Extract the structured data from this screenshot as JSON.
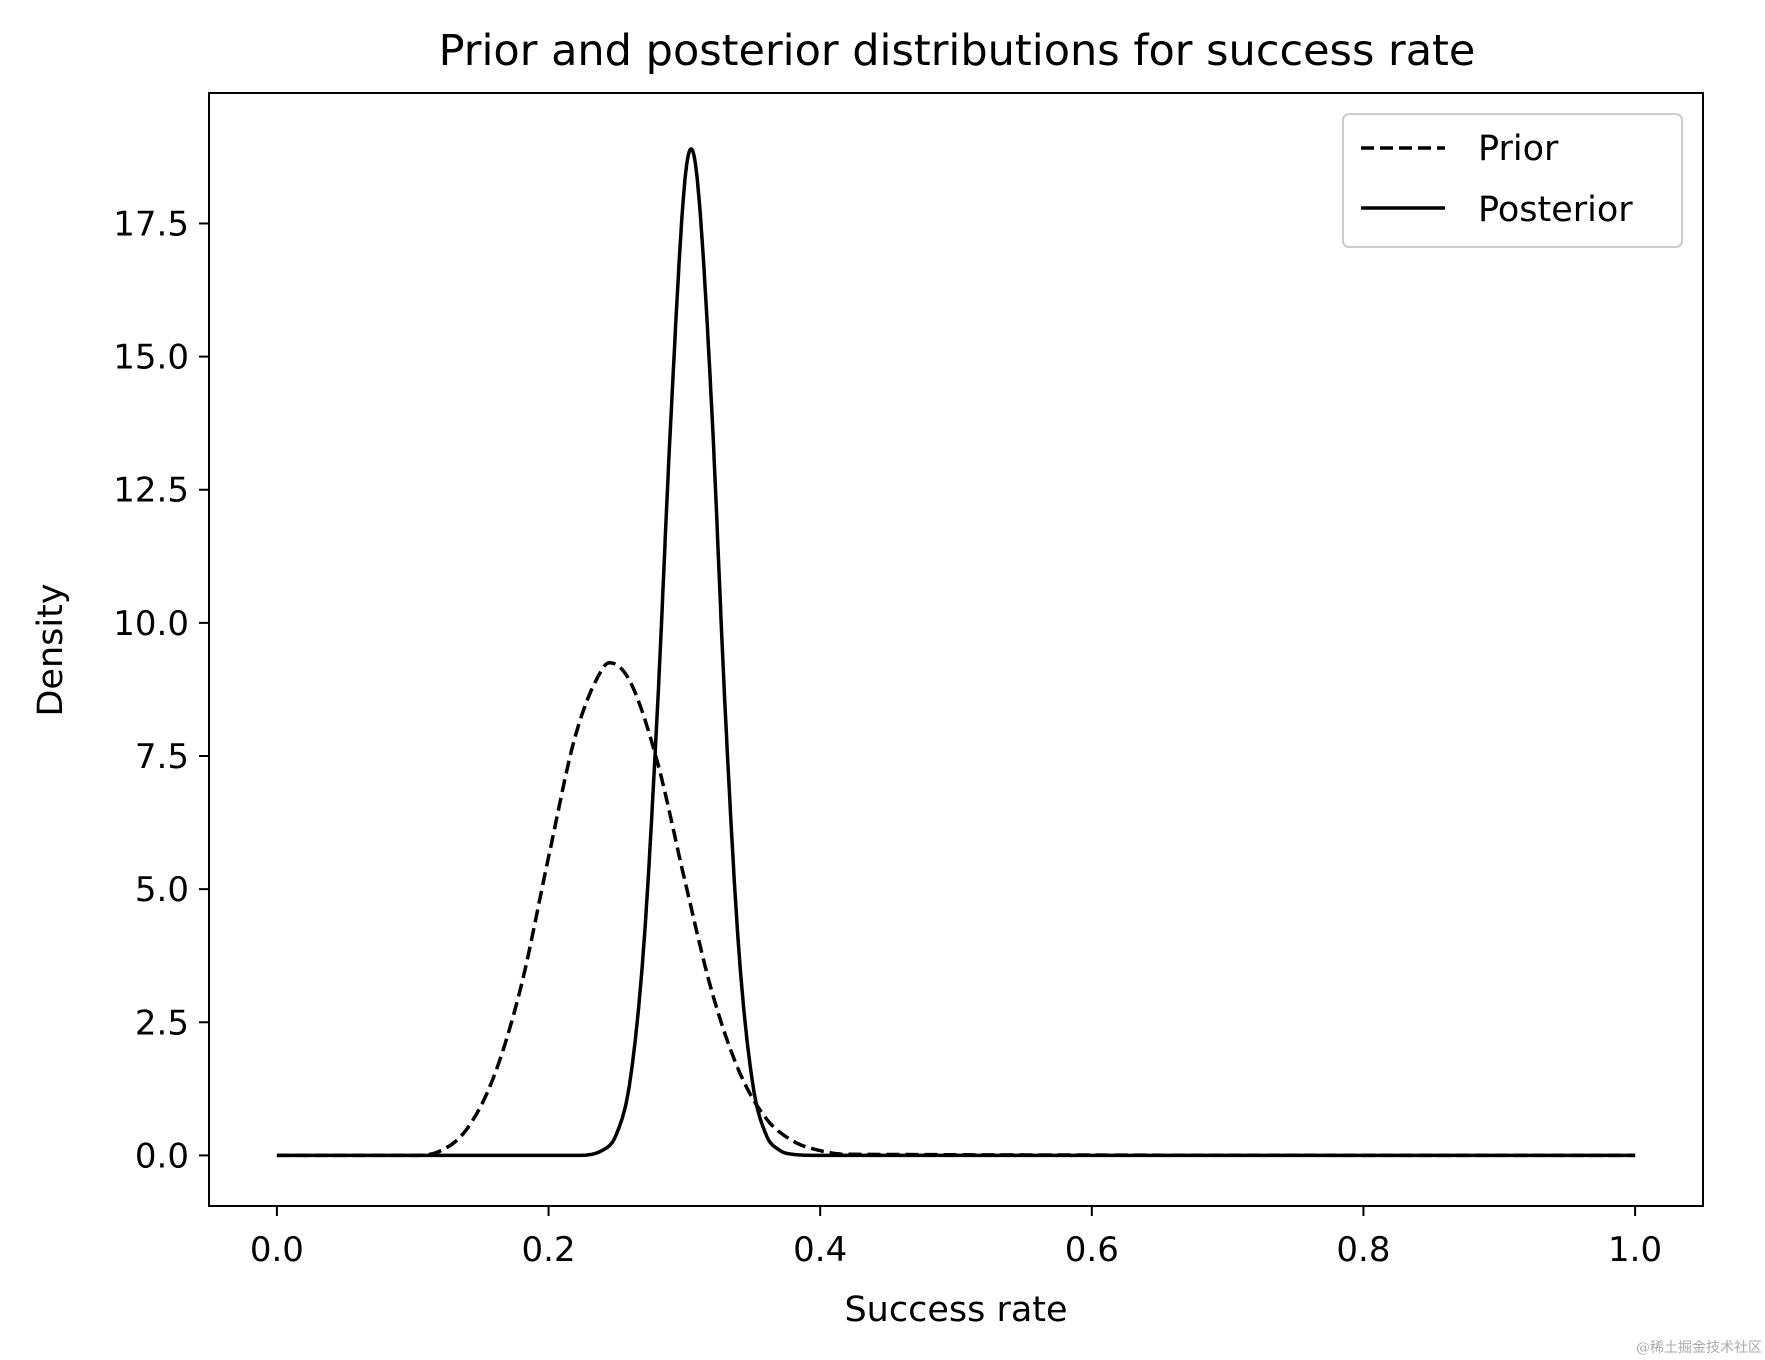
{
  "chart_data": {
    "type": "line",
    "title": "Prior and posterior distributions for success rate",
    "xlabel": "Success rate",
    "ylabel": "Density",
    "xlim": [
      -0.05,
      1.05
    ],
    "ylim": [
      -0.95,
      19.95
    ],
    "xticks": [
      0.0,
      0.2,
      0.4,
      0.6,
      0.8,
      1.0
    ],
    "xtick_labels": [
      "0.0",
      "0.2",
      "0.4",
      "0.6",
      "0.8",
      "1.0"
    ],
    "yticks": [
      0.0,
      2.5,
      5.0,
      7.5,
      10.0,
      12.5,
      15.0,
      17.5
    ],
    "ytick_labels": [
      "0.0",
      "2.5",
      "5.0",
      "7.5",
      "10.0",
      "12.5",
      "15.0",
      "17.5"
    ],
    "grid": false,
    "legend_position": "top-right",
    "series": [
      {
        "name": "Prior",
        "style": "dashed",
        "color": "#000000",
        "x": [
          0.0,
          0.1,
          0.12,
          0.14,
          0.16,
          0.18,
          0.2,
          0.22,
          0.24,
          0.245,
          0.26,
          0.28,
          0.3,
          0.32,
          0.34,
          0.36,
          0.38,
          0.4,
          0.42,
          1.0
        ],
        "y": [
          0.0,
          0.0,
          0.08,
          0.5,
          1.5,
          3.2,
          5.6,
          7.9,
          9.15,
          9.25,
          8.9,
          7.4,
          5.2,
          3.1,
          1.6,
          0.7,
          0.27,
          0.09,
          0.02,
          0.0
        ]
      },
      {
        "name": "Posterior",
        "style": "solid",
        "color": "#000000",
        "x": [
          0.0,
          0.22,
          0.24,
          0.25,
          0.26,
          0.27,
          0.28,
          0.29,
          0.3,
          0.305,
          0.31,
          0.32,
          0.33,
          0.34,
          0.35,
          0.36,
          0.37,
          0.38,
          0.4,
          1.0
        ],
        "y": [
          0.0,
          0.0,
          0.1,
          0.4,
          1.4,
          3.9,
          8.3,
          13.8,
          18.2,
          18.9,
          18.2,
          14.1,
          8.4,
          3.9,
          1.4,
          0.4,
          0.1,
          0.02,
          0.0,
          0.0
        ]
      }
    ]
  },
  "watermark": "@稀土掘金技术社区"
}
